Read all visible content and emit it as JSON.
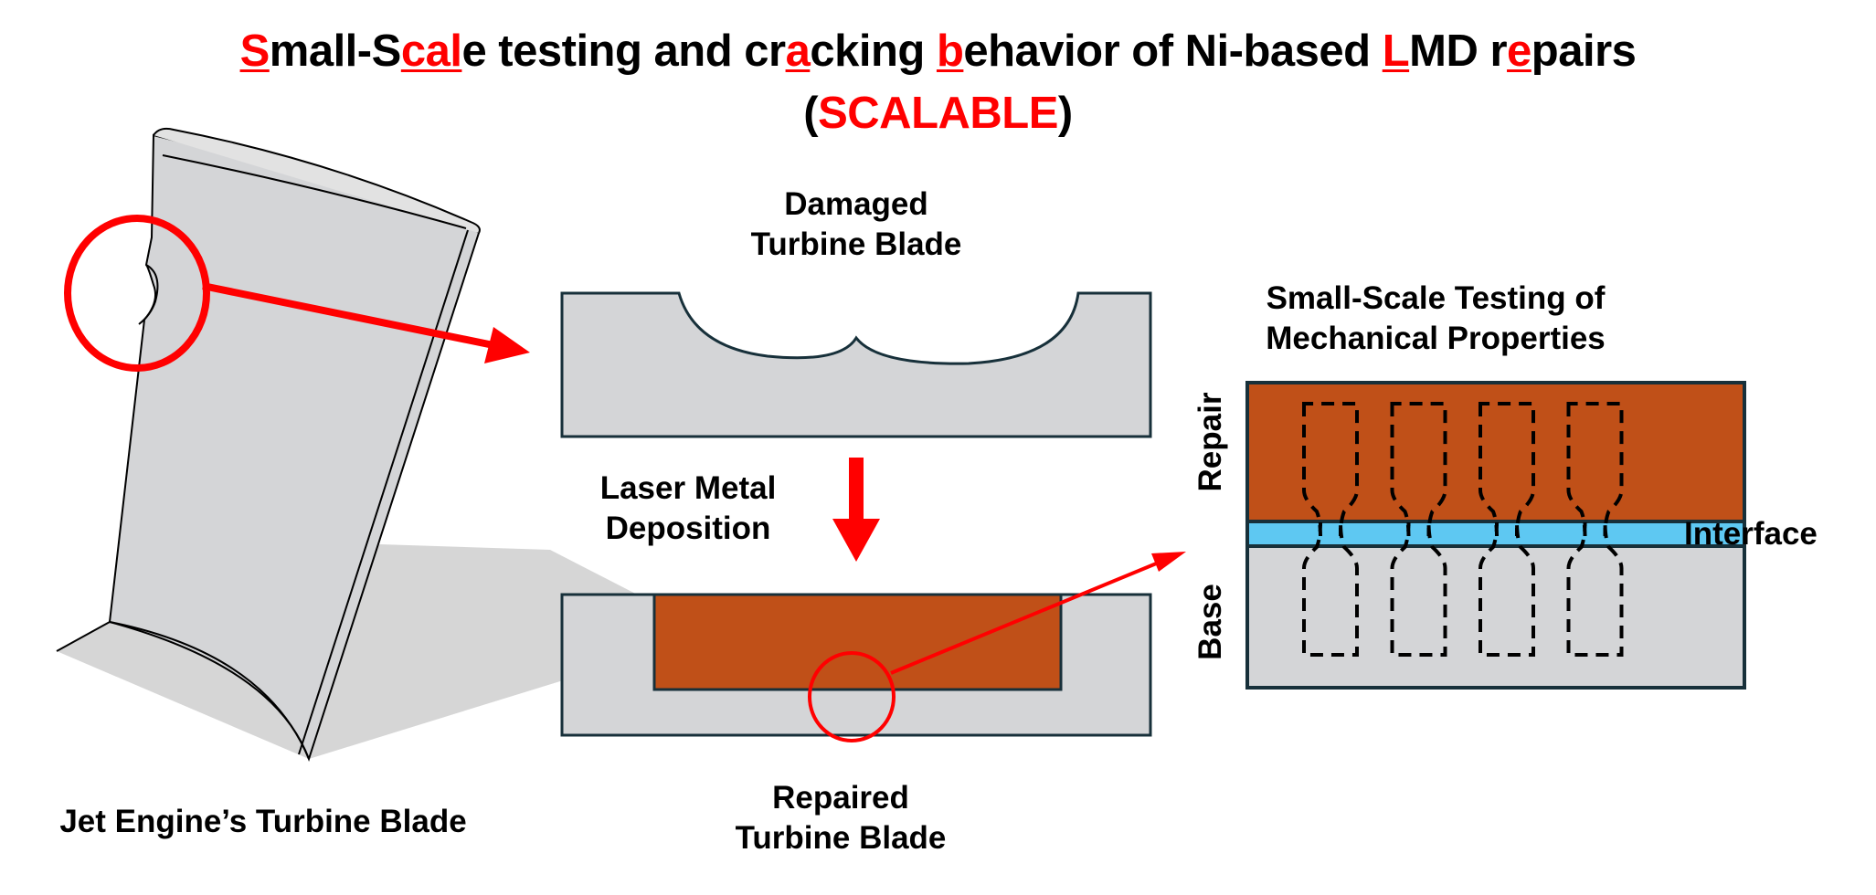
{
  "title": {
    "line1_segments": [
      {
        "text": "S",
        "highlight": true
      },
      {
        "text": "mall-S",
        "highlight": false
      },
      {
        "text": "cal",
        "highlight": true
      },
      {
        "text": "e testing and cr",
        "highlight": false
      },
      {
        "text": "a",
        "highlight": true
      },
      {
        "text": "cking ",
        "highlight": false
      },
      {
        "text": "b",
        "highlight": true
      },
      {
        "text": "ehavior of Ni-based ",
        "highlight": false
      },
      {
        "text": "L",
        "highlight": true
      },
      {
        "text": "MD r",
        "highlight": false
      },
      {
        "text": "e",
        "highlight": true
      },
      {
        "text": "pairs",
        "highlight": false
      }
    ],
    "line2_open": "(",
    "line2_acronym": "SCALABLE",
    "line2_close": ")"
  },
  "labels": {
    "blade": "Jet Engine’s Turbine Blade",
    "damaged_1": "Damaged",
    "damaged_2": "Turbine Blade",
    "process_1": "Laser Metal",
    "process_2": "Deposition",
    "repaired_1": "Repaired",
    "repaired_2": "Turbine Blade",
    "testing_1": "Small-Scale Testing of",
    "testing_2": "Mechanical Properties",
    "repair": "Repair",
    "base": "Base",
    "interface": "Interface"
  },
  "specimen_count": 4,
  "colors": {
    "highlight": "#ff0000",
    "repair_material": "#c05018",
    "base_material": "#d4d5d7",
    "interface": "#5ec8f2",
    "outline": "#17303a",
    "arrow": "#ff0000"
  }
}
